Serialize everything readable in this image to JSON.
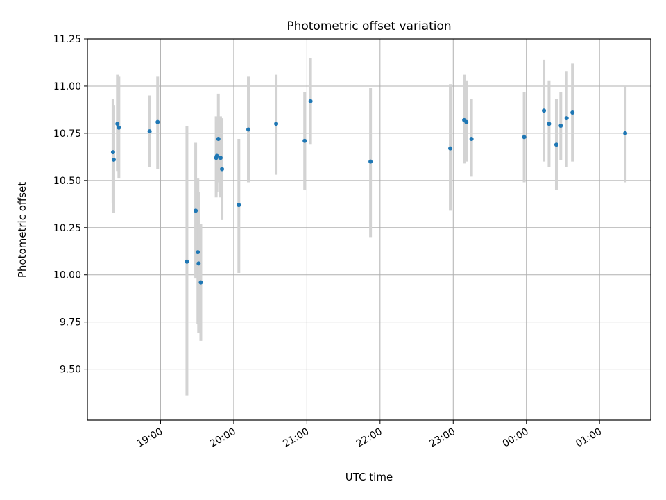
{
  "chart_data": {
    "type": "scatter",
    "title": "Photometric offset variation",
    "xlabel": "UTC time",
    "ylabel": "Photometric offset",
    "x_unit": "hours since 18:00 UTC",
    "xlim": [
      0.0,
      7.7
    ],
    "ylim": [
      9.23,
      11.25
    ],
    "x_ticks": [
      {
        "value": 1.0,
        "label": "19:00"
      },
      {
        "value": 2.0,
        "label": "20:00"
      },
      {
        "value": 3.0,
        "label": "21:00"
      },
      {
        "value": 4.0,
        "label": "22:00"
      },
      {
        "value": 5.0,
        "label": "23:00"
      },
      {
        "value": 6.0,
        "label": "00:00"
      },
      {
        "value": 7.0,
        "label": "01:00"
      }
    ],
    "y_ticks": [
      {
        "value": 9.5,
        "label": "9.50"
      },
      {
        "value": 9.75,
        "label": "9.75"
      },
      {
        "value": 10.0,
        "label": "10.00"
      },
      {
        "value": 10.25,
        "label": "10.25"
      },
      {
        "value": 10.5,
        "label": "10.50"
      },
      {
        "value": 10.75,
        "label": "10.75"
      },
      {
        "value": 11.0,
        "label": "11.00"
      },
      {
        "value": 11.25,
        "label": "11.25"
      }
    ],
    "grid": true,
    "colors": {
      "point": "#1f77b4",
      "errorbar": "#d3d3d3",
      "grid": "#b0b0b0",
      "axes": "#000000"
    },
    "series": [
      {
        "name": "offset",
        "points": [
          {
            "x": 0.35,
            "y": 10.65,
            "lo": 10.38,
            "hi": 10.93
          },
          {
            "x": 0.36,
            "y": 10.61,
            "lo": 10.33,
            "hi": 10.9
          },
          {
            "x": 0.41,
            "y": 10.8,
            "lo": 10.55,
            "hi": 11.06
          },
          {
            "x": 0.43,
            "y": 10.78,
            "lo": 10.51,
            "hi": 11.05
          },
          {
            "x": 0.85,
            "y": 10.76,
            "lo": 10.57,
            "hi": 10.95
          },
          {
            "x": 0.96,
            "y": 10.81,
            "lo": 10.56,
            "hi": 11.05
          },
          {
            "x": 1.36,
            "y": 10.07,
            "lo": 9.36,
            "hi": 10.79
          },
          {
            "x": 1.48,
            "y": 10.34,
            "lo": 9.98,
            "hi": 10.7
          },
          {
            "x": 1.51,
            "y": 10.12,
            "lo": 9.74,
            "hi": 10.51
          },
          {
            "x": 1.52,
            "y": 10.06,
            "lo": 9.69,
            "hi": 10.44
          },
          {
            "x": 1.55,
            "y": 9.96,
            "lo": 9.65,
            "hi": 10.27
          },
          {
            "x": 1.76,
            "y": 10.62,
            "lo": 10.41,
            "hi": 10.84
          },
          {
            "x": 1.77,
            "y": 10.63,
            "lo": 10.44,
            "hi": 10.81
          },
          {
            "x": 1.79,
            "y": 10.72,
            "lo": 10.49,
            "hi": 10.96
          },
          {
            "x": 1.82,
            "y": 10.62,
            "lo": 10.41,
            "hi": 10.84
          },
          {
            "x": 1.84,
            "y": 10.56,
            "lo": 10.29,
            "hi": 10.83
          },
          {
            "x": 2.07,
            "y": 10.37,
            "lo": 10.01,
            "hi": 10.72
          },
          {
            "x": 2.2,
            "y": 10.77,
            "lo": 10.49,
            "hi": 11.05
          },
          {
            "x": 2.58,
            "y": 10.8,
            "lo": 10.53,
            "hi": 11.06
          },
          {
            "x": 2.97,
            "y": 10.71,
            "lo": 10.45,
            "hi": 10.97
          },
          {
            "x": 3.05,
            "y": 10.92,
            "lo": 10.69,
            "hi": 11.15
          },
          {
            "x": 3.87,
            "y": 10.6,
            "lo": 10.2,
            "hi": 10.99
          },
          {
            "x": 4.96,
            "y": 10.67,
            "lo": 10.34,
            "hi": 11.01
          },
          {
            "x": 5.15,
            "y": 10.82,
            "lo": 10.59,
            "hi": 11.06
          },
          {
            "x": 5.18,
            "y": 10.81,
            "lo": 10.6,
            "hi": 11.03
          },
          {
            "x": 5.25,
            "y": 10.72,
            "lo": 10.52,
            "hi": 10.93
          },
          {
            "x": 5.97,
            "y": 10.73,
            "lo": 10.49,
            "hi": 10.97
          },
          {
            "x": 6.24,
            "y": 10.87,
            "lo": 10.6,
            "hi": 11.14
          },
          {
            "x": 6.31,
            "y": 10.8,
            "lo": 10.57,
            "hi": 11.03
          },
          {
            "x": 6.41,
            "y": 10.69,
            "lo": 10.45,
            "hi": 10.93
          },
          {
            "x": 6.47,
            "y": 10.79,
            "lo": 10.61,
            "hi": 10.97
          },
          {
            "x": 6.55,
            "y": 10.83,
            "lo": 10.57,
            "hi": 11.08
          },
          {
            "x": 6.63,
            "y": 10.86,
            "lo": 10.6,
            "hi": 11.12
          },
          {
            "x": 7.35,
            "y": 10.75,
            "lo": 10.49,
            "hi": 11.0
          }
        ]
      }
    ]
  }
}
